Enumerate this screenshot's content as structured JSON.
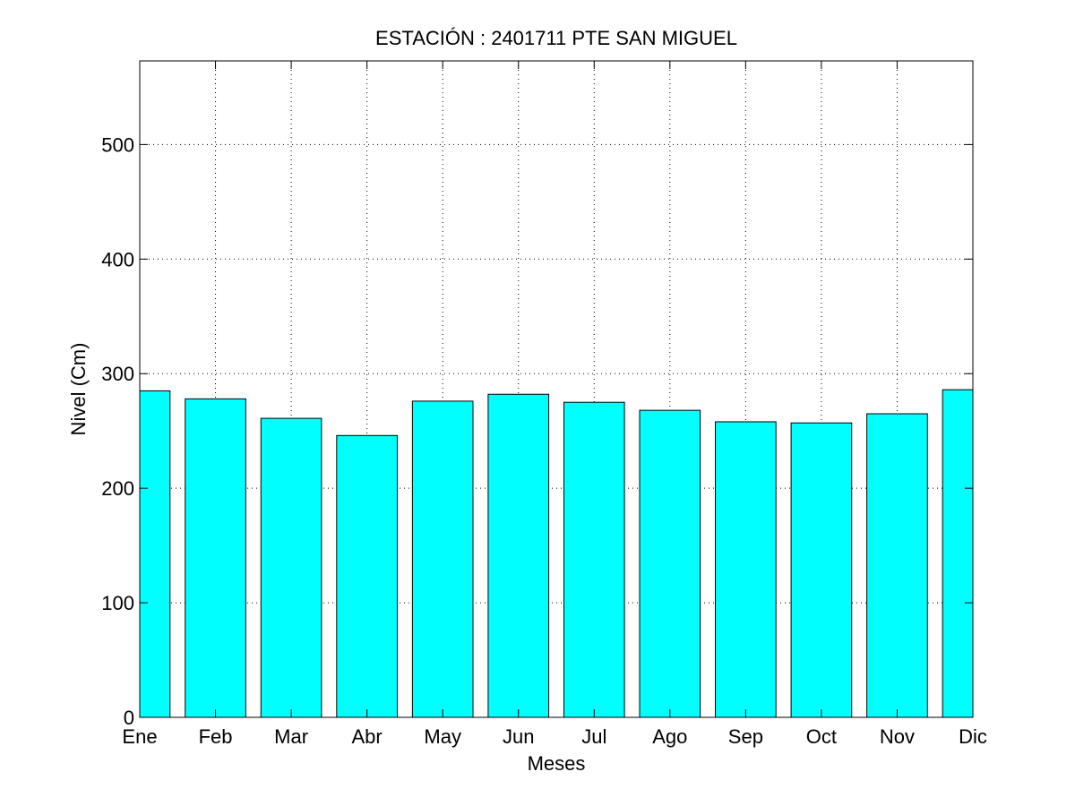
{
  "chart_data": {
    "type": "bar",
    "title": "ESTACIÓN :  2401711  PTE SAN MIGUEL",
    "xlabel": "Meses",
    "ylabel": "Nivel (Cm)",
    "categories": [
      "Ene",
      "Feb",
      "Mar",
      "Abr",
      "May",
      "Jun",
      "Jul",
      "Ago",
      "Sep",
      "Oct",
      "Nov",
      "Dic"
    ],
    "values": [
      285,
      278,
      261,
      246,
      276,
      282,
      275,
      268,
      258,
      257,
      265,
      286
    ],
    "ylim": [
      0,
      573
    ],
    "yticks": [
      0,
      100,
      200,
      300,
      400,
      500
    ],
    "grid": true,
    "bar_color": "#00ffff"
  }
}
